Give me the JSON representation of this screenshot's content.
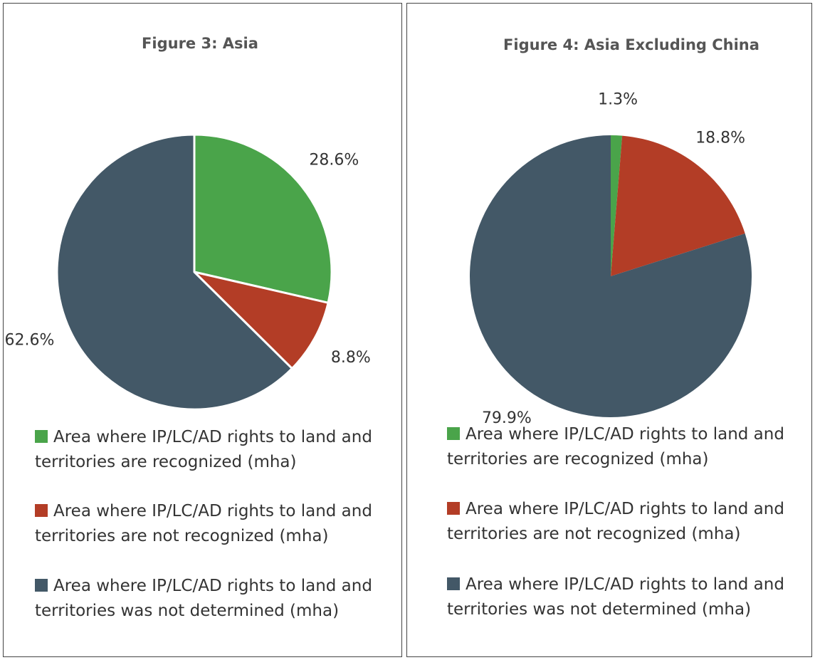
{
  "chart_data": [
    {
      "type": "pie",
      "title": "Figure 3: Asia",
      "categories": [
        "Area where IP/LC/AD rights to land and territories are recognized (mha)",
        "Area where IP/LC/AD rights to land and territories are not recognized (mha)",
        "Area where IP/LC/AD rights to land and territories was not determined (mha)"
      ],
      "values": [
        28.6,
        8.8,
        62.6
      ],
      "value_labels": [
        "28.6%",
        "8.8%",
        "62.6%"
      ],
      "colors": [
        "#4aa44a",
        "#b33d26",
        "#435867"
      ],
      "edgecolor": "#ffffff"
    },
    {
      "type": "pie",
      "title": "Figure 4: Asia Excluding China",
      "categories": [
        "Area where IP/LC/AD rights to land and territories are recognized (mha)",
        "Area where IP/LC/AD rights to land and territories are not recognized (mha)",
        "Area where IP/LC/AD rights to land and territories was not determined (mha)"
      ],
      "values": [
        1.3,
        18.8,
        79.9
      ],
      "value_labels": [
        "1.3%",
        "18.8%",
        "79.9%"
      ],
      "colors": [
        "#4aa44a",
        "#b33d26",
        "#435867"
      ]
    }
  ]
}
